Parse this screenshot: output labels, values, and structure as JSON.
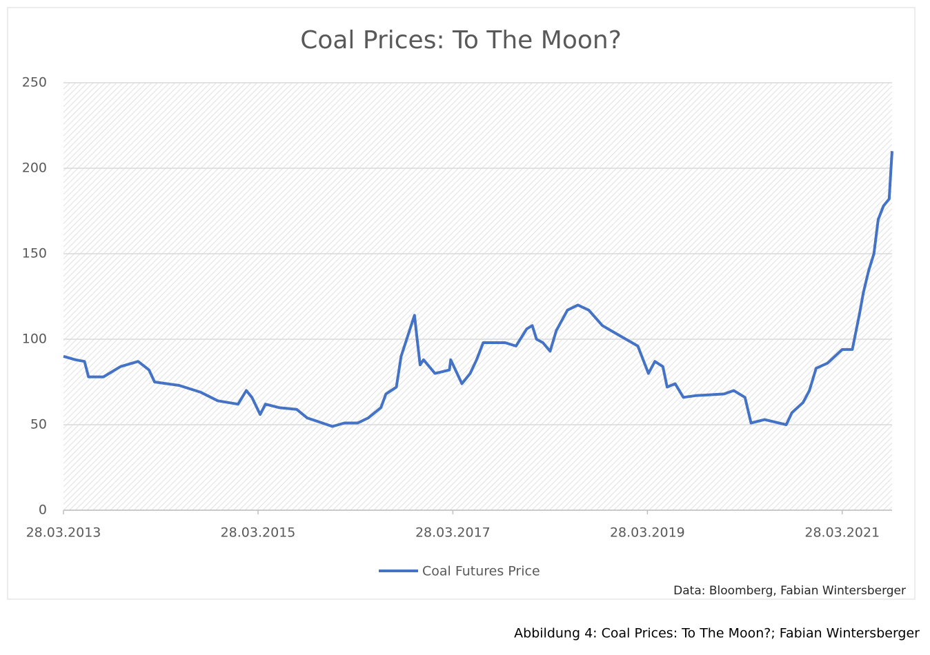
{
  "chart_data": {
    "type": "line",
    "title": "Coal Prices: To The Moon?",
    "source": "Data: Bloomberg, Fabian Wintersberger",
    "caption": "Abbildung 4: Coal Prices: To The Moon?; Fabian Wintersberger",
    "x": [
      "2013-03-28",
      "2013-05-12",
      "2013-06-15",
      "2013-06-30",
      "2013-08-25",
      "2013-10-28",
      "2014-01-02",
      "2014-02-12",
      "2014-03-05",
      "2014-06-05",
      "2014-08-25",
      "2014-10-28",
      "2015-01-12",
      "2015-02-12",
      "2015-03-05",
      "2015-04-05",
      "2015-04-25",
      "2015-06-15",
      "2015-08-20",
      "2015-09-28",
      "2015-11-05",
      "2016-01-01",
      "2016-02-15",
      "2016-04-05",
      "2016-05-15",
      "2016-07-01",
      "2016-07-20",
      "2016-08-28",
      "2016-09-15",
      "2016-11-04",
      "2016-11-12",
      "2016-11-25",
      "2016-12-08",
      "2017-01-20",
      "2017-03-15",
      "2017-03-20",
      "2017-05-01",
      "2017-06-01",
      "2017-06-25",
      "2017-07-20",
      "2017-10-10",
      "2017-11-20",
      "2017-12-30",
      "2018-01-20",
      "2018-02-05",
      "2018-03-01",
      "2018-03-28",
      "2018-04-20",
      "2018-06-01",
      "2018-07-10",
      "2018-08-20",
      "2018-10-10",
      "2018-12-15",
      "2019-02-20",
      "2019-04-01",
      "2019-04-25",
      "2019-05-25",
      "2019-06-10",
      "2019-07-10",
      "2019-08-10",
      "2019-09-25",
      "2020-01-10",
      "2020-02-15",
      "2020-03-28",
      "2020-04-20",
      "2020-06-10",
      "2020-08-30",
      "2020-09-20",
      "2020-11-01",
      "2020-11-25",
      "2020-12-20",
      "2021-02-01",
      "2021-03-28",
      "2021-05-05",
      "2021-06-01",
      "2021-06-15",
      "2021-07-05",
      "2021-07-25",
      "2021-08-10",
      "2021-08-30",
      "2021-09-20",
      "2021-10-01"
    ],
    "series": [
      {
        "name": "Coal Futures Price",
        "color": "#4472c4",
        "values": [
          90,
          88,
          87,
          78,
          78,
          84,
          87,
          82,
          75,
          73,
          69,
          64,
          62,
          70,
          66,
          56,
          62,
          60,
          59,
          54,
          52,
          49,
          51,
          51,
          54,
          60,
          68,
          72,
          90,
          114,
          103,
          85,
          88,
          80,
          82,
          88,
          74,
          80,
          88,
          98,
          98,
          96,
          106,
          108,
          100,
          98,
          93,
          105,
          117,
          120,
          117,
          108,
          102,
          96,
          80,
          87,
          84,
          72,
          74,
          66,
          67,
          68,
          70,
          66,
          51,
          53,
          50,
          57,
          63,
          70,
          83,
          86,
          94,
          94,
          115,
          127,
          140,
          150,
          170,
          178,
          182,
          210
        ]
      }
    ],
    "xlim": [
      "2013-03-28",
      "2021-10-01"
    ],
    "xticks": [
      {
        "value": "2013-03-28",
        "label": "28.03.2013"
      },
      {
        "value": "2015-03-28",
        "label": "28.03.2015"
      },
      {
        "value": "2017-03-28",
        "label": "28.03.2017"
      },
      {
        "value": "2019-03-28",
        "label": "28.03.2019"
      },
      {
        "value": "2021-03-28",
        "label": "28.03.2021"
      }
    ],
    "ylim": [
      0,
      250
    ],
    "yticks": [
      0,
      50,
      100,
      150,
      200,
      250
    ],
    "grid": true,
    "legend": "bottom"
  }
}
